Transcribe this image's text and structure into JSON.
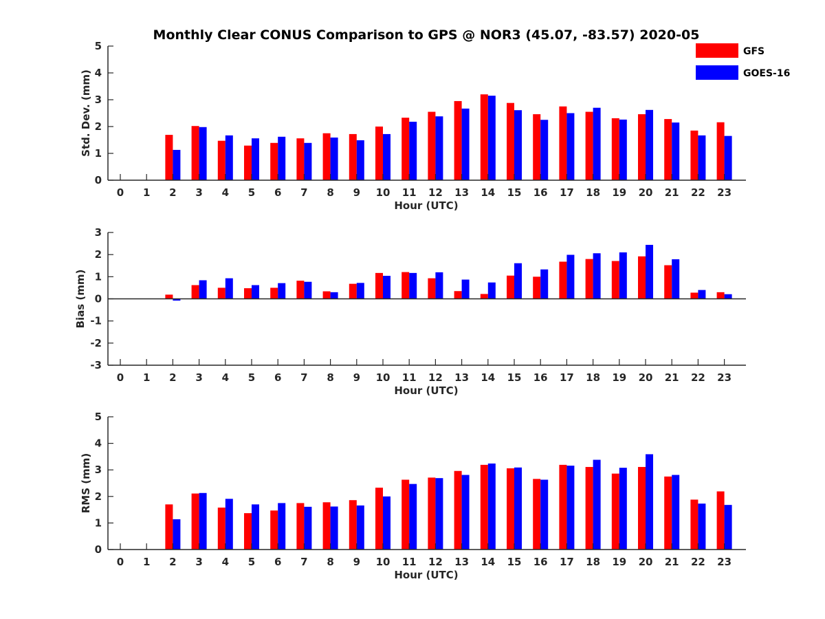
{
  "title": "Monthly Clear CONUS Comparison to GPS @ NOR3 (45.07, -83.57) 2020-05",
  "colors": {
    "GFS": "#ff0000",
    "GOES-16": "#0000ff",
    "axis": "#262626"
  },
  "legend": [
    "GFS",
    "GOES-16"
  ],
  "chart_data": [
    {
      "type": "bar",
      "xlabel": "Hour (UTC)",
      "ylabel": "Std. Dev. (mm)",
      "ylim": [
        0,
        5
      ],
      "yticks": [
        0,
        1,
        2,
        3,
        4,
        5
      ],
      "categories": [
        "0",
        "1",
        "2",
        "3",
        "4",
        "5",
        "6",
        "7",
        "8",
        "9",
        "10",
        "11",
        "12",
        "13",
        "14",
        "15",
        "16",
        "17",
        "18",
        "19",
        "20",
        "21",
        "22",
        "23"
      ],
      "series": [
        {
          "name": "GFS",
          "values": [
            null,
            null,
            1.69,
            2.02,
            1.47,
            1.29,
            1.39,
            1.56,
            1.75,
            1.72,
            2.0,
            2.33,
            2.55,
            2.95,
            3.2,
            2.88,
            2.46,
            2.75,
            2.55,
            2.31,
            2.46,
            2.28,
            1.85,
            2.16
          ]
        },
        {
          "name": "GOES-16",
          "values": [
            null,
            null,
            1.13,
            1.98,
            1.67,
            1.56,
            1.62,
            1.39,
            1.59,
            1.49,
            1.72,
            2.18,
            2.38,
            2.67,
            3.15,
            2.61,
            2.25,
            2.5,
            2.7,
            2.26,
            2.62,
            2.15,
            1.67,
            1.65
          ]
        }
      ]
    },
    {
      "type": "bar",
      "xlabel": "Hour (UTC)",
      "ylabel": "Bias (mm)",
      "ylim": [
        -3,
        3
      ],
      "yticks": [
        -3,
        -2,
        -1,
        0,
        1,
        2,
        3
      ],
      "categories": [
        "0",
        "1",
        "2",
        "3",
        "4",
        "5",
        "6",
        "7",
        "8",
        "9",
        "10",
        "11",
        "12",
        "13",
        "14",
        "15",
        "16",
        "17",
        "18",
        "19",
        "20",
        "21",
        "22",
        "23"
      ],
      "series": [
        {
          "name": "GFS",
          "values": [
            null,
            null,
            0.19,
            0.62,
            0.5,
            0.48,
            0.5,
            0.82,
            0.34,
            0.68,
            1.17,
            1.21,
            0.93,
            0.35,
            0.22,
            1.05,
            1.0,
            1.68,
            1.8,
            1.71,
            1.92,
            1.52,
            0.28,
            0.3
          ]
        },
        {
          "name": "GOES-16",
          "values": [
            null,
            null,
            -0.08,
            0.84,
            0.93,
            0.62,
            0.71,
            0.77,
            0.3,
            0.72,
            1.04,
            1.17,
            1.2,
            0.87,
            0.74,
            1.61,
            1.33,
            1.99,
            2.06,
            2.1,
            2.44,
            1.79,
            0.4,
            0.21
          ]
        }
      ]
    },
    {
      "type": "bar",
      "xlabel": "Hour (UTC)",
      "ylabel": "RMS (mm)",
      "ylim": [
        0,
        5
      ],
      "yticks": [
        0,
        1,
        2,
        3,
        4,
        5
      ],
      "categories": [
        "0",
        "1",
        "2",
        "3",
        "4",
        "5",
        "6",
        "7",
        "8",
        "9",
        "10",
        "11",
        "12",
        "13",
        "14",
        "15",
        "16",
        "17",
        "18",
        "19",
        "20",
        "21",
        "22",
        "23"
      ],
      "series": [
        {
          "name": "GFS",
          "values": [
            null,
            null,
            1.7,
            2.11,
            1.58,
            1.37,
            1.47,
            1.75,
            1.78,
            1.86,
            2.33,
            2.63,
            2.71,
            2.96,
            3.19,
            3.06,
            2.66,
            3.19,
            3.11,
            2.86,
            3.11,
            2.75,
            1.88,
            2.19
          ]
        },
        {
          "name": "GOES-16",
          "values": [
            null,
            null,
            1.14,
            2.13,
            1.91,
            1.7,
            1.75,
            1.61,
            1.62,
            1.66,
            2.0,
            2.47,
            2.69,
            2.81,
            3.24,
            3.09,
            2.63,
            3.16,
            3.38,
            3.08,
            3.59,
            2.81,
            1.73,
            1.68
          ]
        }
      ]
    }
  ]
}
